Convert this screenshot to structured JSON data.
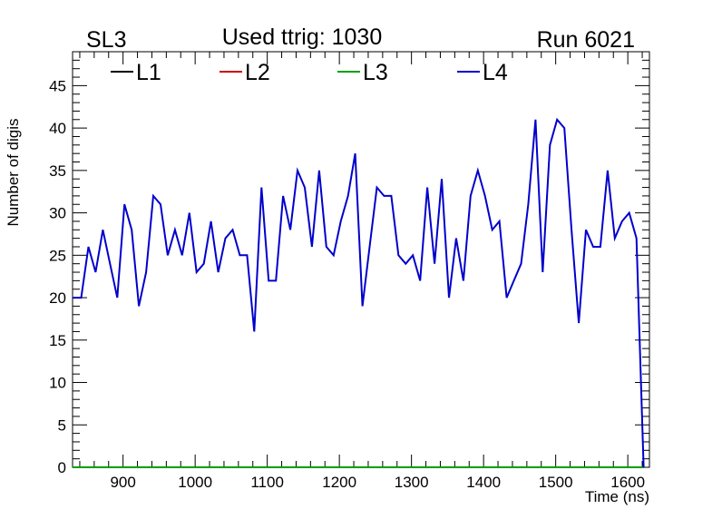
{
  "header": {
    "left_label": "SL3",
    "title": "Used ttrig: 1030",
    "right_label": "Run 6021"
  },
  "chart_data": {
    "type": "line",
    "xlabel": "Time (ns)",
    "ylabel": "Number of digis",
    "xlim": [
      830,
      1630
    ],
    "ylim": [
      0,
      49
    ],
    "x_ticks": [
      900,
      1000,
      1100,
      1200,
      1300,
      1400,
      1500,
      1600
    ],
    "y_ticks": [
      0,
      5,
      10,
      15,
      20,
      25,
      30,
      35,
      40,
      45
    ],
    "grid": false,
    "legend_position": "top",
    "x": [
      830,
      842,
      852,
      862,
      872,
      882,
      892,
      902,
      912,
      922,
      932,
      942,
      952,
      962,
      972,
      982,
      992,
      1002,
      1012,
      1022,
      1032,
      1042,
      1052,
      1062,
      1072,
      1082,
      1092,
      1102,
      1112,
      1122,
      1132,
      1142,
      1152,
      1162,
      1172,
      1182,
      1192,
      1202,
      1212,
      1222,
      1232,
      1242,
      1252,
      1262,
      1272,
      1282,
      1292,
      1302,
      1312,
      1322,
      1332,
      1342,
      1352,
      1362,
      1372,
      1382,
      1392,
      1402,
      1412,
      1422,
      1432,
      1442,
      1452,
      1462,
      1472,
      1482,
      1492,
      1502,
      1512,
      1522,
      1532,
      1542,
      1552,
      1562,
      1572,
      1582,
      1592,
      1602,
      1612,
      1622
    ],
    "series": [
      {
        "name": "L1",
        "color": "#000000",
        "values": [
          0,
          0,
          0,
          0,
          0,
          0,
          0,
          0,
          0,
          0,
          0,
          0,
          0,
          0,
          0,
          0,
          0,
          0,
          0,
          0,
          0,
          0,
          0,
          0,
          0,
          0,
          0,
          0,
          0,
          0,
          0,
          0,
          0,
          0,
          0,
          0,
          0,
          0,
          0,
          0,
          0,
          0,
          0,
          0,
          0,
          0,
          0,
          0,
          0,
          0,
          0,
          0,
          0,
          0,
          0,
          0,
          0,
          0,
          0,
          0,
          0,
          0,
          0,
          0,
          0,
          0,
          0,
          0,
          0,
          0,
          0,
          0,
          0,
          0,
          0,
          0,
          0,
          0,
          0,
          0
        ]
      },
      {
        "name": "L2",
        "color": "#cc0000",
        "values": [
          0,
          0,
          0,
          0,
          0,
          0,
          0,
          0,
          0,
          0,
          0,
          0,
          0,
          0,
          0,
          0,
          0,
          0,
          0,
          0,
          0,
          0,
          0,
          0,
          0,
          0,
          0,
          0,
          0,
          0,
          0,
          0,
          0,
          0,
          0,
          0,
          0,
          0,
          0,
          0,
          0,
          0,
          0,
          0,
          0,
          0,
          0,
          0,
          0,
          0,
          0,
          0,
          0,
          0,
          0,
          0,
          0,
          0,
          0,
          0,
          0,
          0,
          0,
          0,
          0,
          0,
          0,
          0,
          0,
          0,
          0,
          0,
          0,
          0,
          0,
          0,
          0,
          0,
          0,
          0
        ]
      },
      {
        "name": "L3",
        "color": "#00a000",
        "values": [
          0,
          0,
          0,
          0,
          0,
          0,
          0,
          0,
          0,
          0,
          0,
          0,
          0,
          0,
          0,
          0,
          0,
          0,
          0,
          0,
          0,
          0,
          0,
          0,
          0,
          0,
          0,
          0,
          0,
          0,
          0,
          0,
          0,
          0,
          0,
          0,
          0,
          0,
          0,
          0,
          0,
          0,
          0,
          0,
          0,
          0,
          0,
          0,
          0,
          0,
          0,
          0,
          0,
          0,
          0,
          0,
          0,
          0,
          0,
          0,
          0,
          0,
          0,
          0,
          0,
          0,
          0,
          0,
          0,
          0,
          0,
          0,
          0,
          0,
          0,
          0,
          0,
          0,
          0,
          0
        ]
      },
      {
        "name": "L4",
        "color": "#0000cc",
        "values": [
          20,
          20,
          26,
          23,
          28,
          24,
          20,
          31,
          28,
          19,
          23,
          32,
          31,
          25,
          28,
          25,
          30,
          23,
          24,
          29,
          23,
          27,
          28,
          25,
          25,
          16,
          33,
          22,
          22,
          32,
          28,
          35,
          33,
          26,
          35,
          26,
          25,
          29,
          32,
          37,
          19,
          26,
          33,
          32,
          32,
          25,
          24,
          25,
          22,
          33,
          24,
          34,
          20,
          27,
          22,
          32,
          35,
          32,
          28,
          29,
          20,
          22,
          24,
          31,
          41,
          23,
          38,
          41,
          40,
          28,
          17,
          28,
          26,
          26,
          35,
          27,
          29,
          30,
          27,
          0
        ]
      }
    ]
  }
}
